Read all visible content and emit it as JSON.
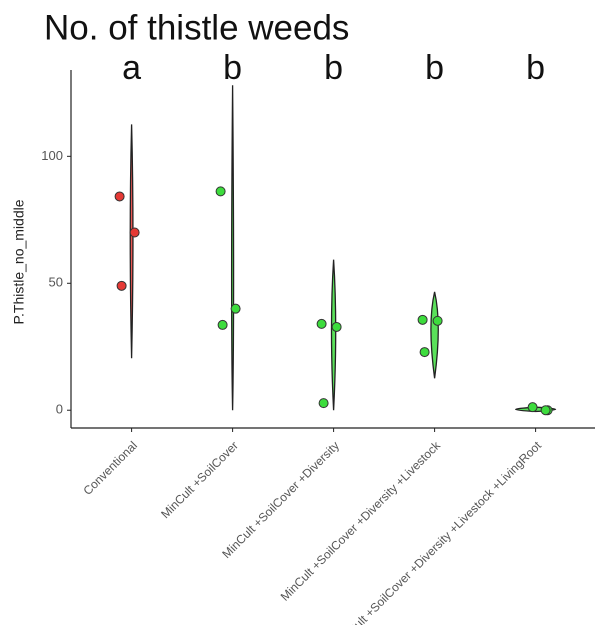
{
  "chart_data": {
    "type": "violin-strip",
    "title": "No. of thistle weeds",
    "annotations": [
      "a",
      "b",
      "b",
      "b",
      "b"
    ],
    "ylabel": "P.Thistle_no_middle",
    "categories": [
      "Conventional",
      "MinCult +SoilCover",
      "MinCult +SoilCover +Diversity",
      "MinCult +SoilCover +Diversity +Livestock",
      "MinCult +SoilCover +Diversity +Livestock +LivingRoot"
    ],
    "values": [
      [
        84.2,
        70,
        49
      ],
      [
        86.2,
        40,
        33.6
      ],
      [
        34,
        32.8,
        2.8
      ],
      [
        35.6,
        35.2,
        22.9
      ],
      [
        0,
        1.2,
        0
      ]
    ],
    "colors": [
      "#e53935",
      "#3ddc3d",
      "#3ddc3d",
      "#3ddc3d",
      "#3ddc3d"
    ],
    "violin_range": [
      [
        20.5,
        112.6
      ],
      [
        0,
        128
      ],
      [
        0,
        59.3
      ],
      [
        12.6,
        46.6
      ],
      [
        -0.5,
        1.2
      ]
    ],
    "violin_peak": [
      70,
      40,
      33,
      34,
      0.3
    ],
    "ylim": [
      -7,
      134
    ],
    "yticks": [
      0,
      50,
      100
    ],
    "grid": false
  }
}
